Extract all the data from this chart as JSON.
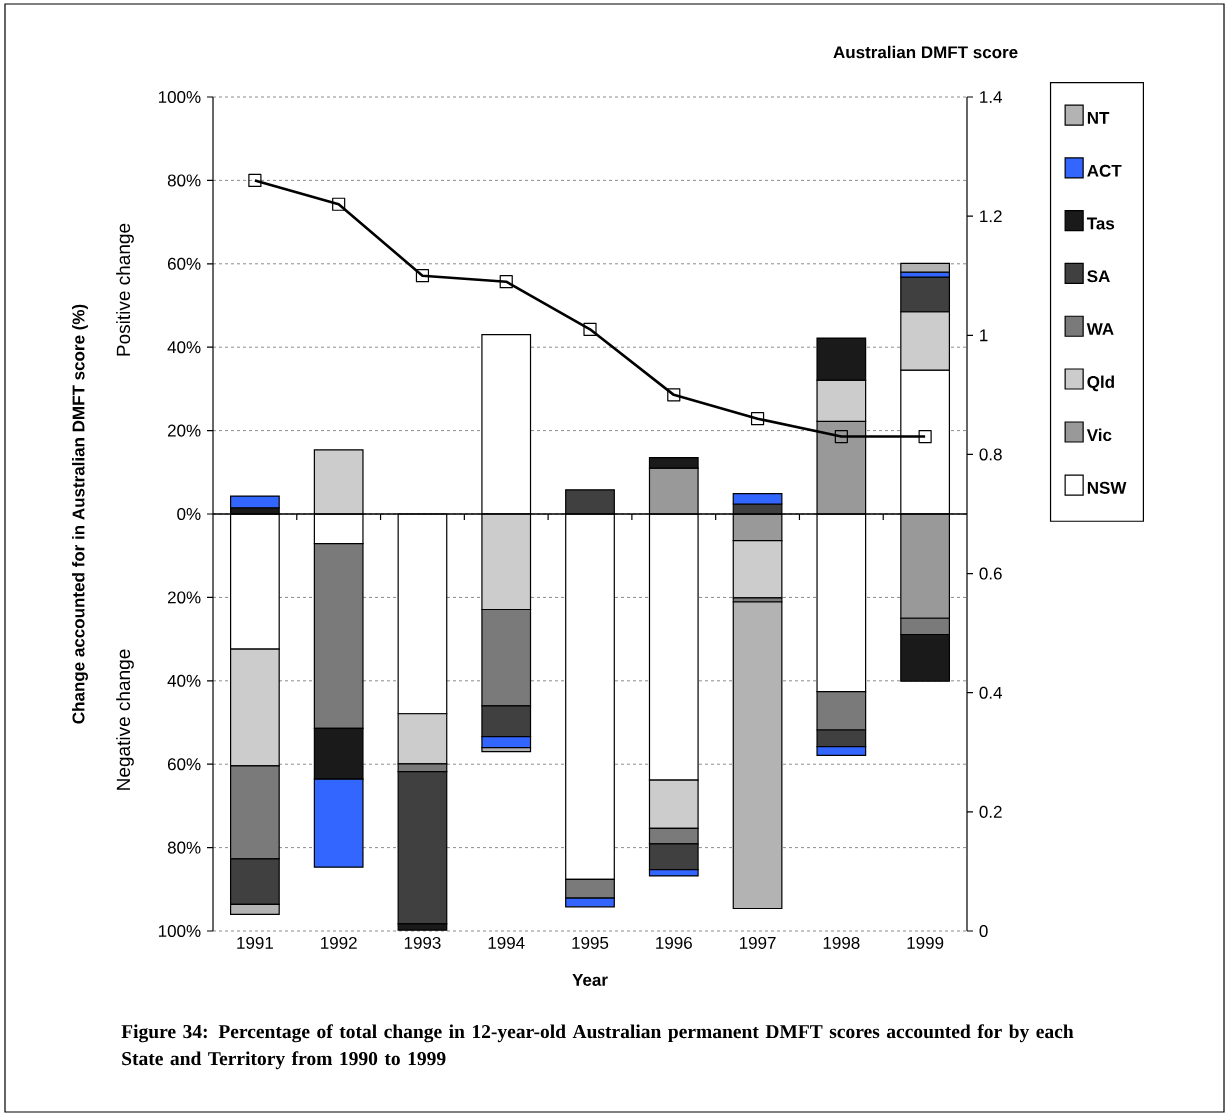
{
  "chart_data": {
    "type": "bar",
    "stacked": true,
    "title": "Figure 34:  Percentage of total change in 12-year-old Australian permanent DMFT scores accounted for by each State and Territory from 1990 to 1999",
    "xlabel": "Year",
    "ylabel": "Change accounted for in Australian DMFT score (%)",
    "y2label": "Australian DMFT score",
    "annotations": [
      "Positive change",
      "Negative change"
    ],
    "categories": [
      "1991",
      "1992",
      "1993",
      "1994",
      "1995",
      "1996",
      "1997",
      "1998",
      "1999"
    ],
    "series": [
      {
        "name": "NSW",
        "color": "#ffffff",
        "values": [
          -32.4,
          -7.1,
          -47.9,
          43,
          -87.6,
          -63.8,
          null,
          -42.6,
          34.5
        ]
      },
      {
        "name": "Vic",
        "color": "#999999",
        "values": [
          null,
          null,
          null,
          null,
          null,
          11.0,
          -6.4,
          22.2,
          -25.0
        ]
      },
      {
        "name": "Qld",
        "color": "#cccccc",
        "values": [
          -28.0,
          15.4,
          -12.0,
          -22.9,
          null,
          -11.6,
          -13.7,
          9.9,
          14.0
        ]
      },
      {
        "name": "WA",
        "color": "#7a7a7a",
        "values": [
          -22.3,
          -44.3,
          -1.9,
          -23.1,
          -4.5,
          -3.7,
          -1.0,
          -9.2,
          -3.9
        ]
      },
      {
        "name": "SA",
        "color": "#404040",
        "values": [
          -10.9,
          null,
          -36.5,
          -7.4,
          5.8,
          -6.2,
          2.4,
          -4.0,
          8.3
        ]
      },
      {
        "name": "Tas",
        "color": "#1a1a1a",
        "values": [
          1.5,
          -12.2,
          -1.5,
          null,
          null,
          2.5,
          null,
          10.1,
          -11.2
        ]
      },
      {
        "name": "ACT",
        "color": "#3366ff",
        "values": [
          2.8,
          -21.1,
          null,
          -2.6,
          -2.1,
          -1.5,
          2.5,
          -2.1,
          1.2
        ]
      },
      {
        "name": "NT",
        "color": "#b3b3b3",
        "values": [
          -2.4,
          null,
          null,
          -1.0,
          null,
          null,
          -73.5,
          null,
          2.1
        ]
      },
      {
        "type": "line",
        "axis": "y2",
        "color": "#000000",
        "marker": "square",
        "values": [
          1.26,
          1.22,
          1.1,
          1.09,
          1.01,
          0.9,
          0.86,
          0.83,
          0.83
        ]
      }
    ],
    "ylim": [
      -100,
      100
    ],
    "yticks": [
      {
        "value": -100,
        "label": "100%"
      },
      {
        "value": -80,
        "label": "80%"
      },
      {
        "value": -60,
        "label": "60%"
      },
      {
        "value": -40,
        "label": "40%"
      },
      {
        "value": -20,
        "label": "20%"
      },
      {
        "value": 0,
        "label": "0%"
      },
      {
        "value": 20,
        "label": "20%"
      },
      {
        "value": 40,
        "label": "40%"
      },
      {
        "value": 60,
        "label": "60%"
      },
      {
        "value": 80,
        "label": "80%"
      },
      {
        "value": 100,
        "label": "100%"
      }
    ],
    "y2lim": [
      0,
      1.4
    ],
    "y2ticks": [
      0,
      0.2,
      0.4,
      0.6,
      0.8,
      1,
      1.2,
      1.4
    ],
    "grid": "y",
    "legend": "right"
  }
}
